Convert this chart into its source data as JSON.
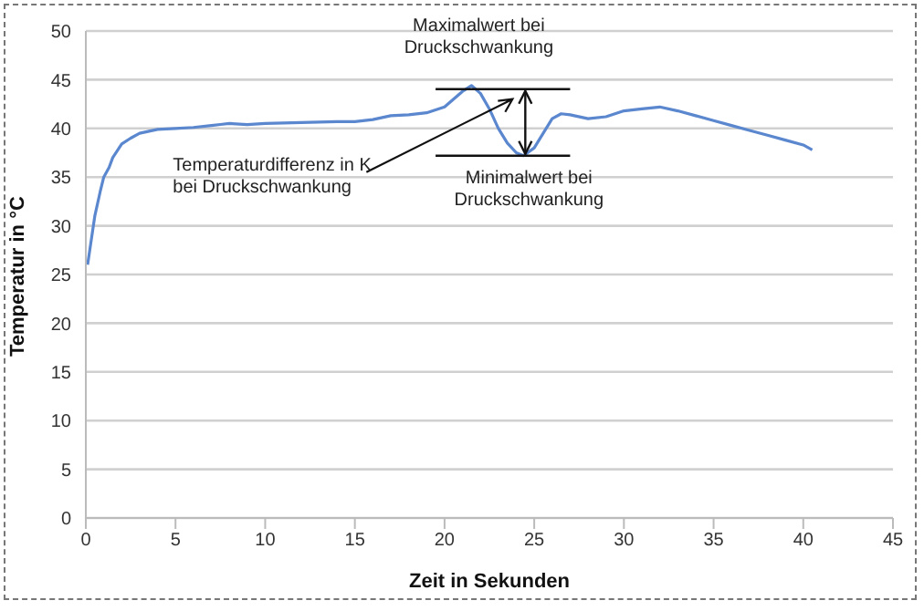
{
  "chart_data": {
    "type": "line",
    "xlabel": "Zeit in Sekunden",
    "ylabel": "Temperatur in °C",
    "x": [
      0.1,
      0.3,
      0.5,
      0.8,
      1,
      1.3,
      1.5,
      2,
      2.5,
      3,
      4,
      5,
      6,
      7,
      7.5,
      8,
      9,
      10,
      12,
      14,
      15,
      16,
      17,
      18,
      19,
      20,
      20.5,
      21,
      21.5,
      22,
      22.5,
      23,
      23.5,
      24,
      24.4,
      25,
      25.5,
      26,
      26.5,
      27,
      28,
      29,
      30,
      31,
      32,
      33,
      34,
      35,
      36,
      37,
      38,
      39,
      40,
      40.5
    ],
    "series": [
      {
        "color": "#5b87cf",
        "values": [
          26,
          28.5,
          31,
          33.5,
          35,
          36,
          37,
          38.4,
          39,
          39.5,
          39.9,
          40,
          40.1,
          40.3,
          40.4,
          40.5,
          40.4,
          40.5,
          40.6,
          40.7,
          40.7,
          40.9,
          41.3,
          41.4,
          41.6,
          42.2,
          43,
          43.8,
          44.4,
          43.6,
          42,
          40,
          38.5,
          37.5,
          37.2,
          38,
          39.5,
          41,
          41.5,
          41.4,
          41,
          41.2,
          41.8,
          42,
          42.2,
          41.8,
          41.3,
          40.8,
          40.3,
          39.8,
          39.3,
          38.8,
          38.3,
          37.8
        ]
      }
    ],
    "xlim": [
      0,
      45
    ],
    "xticks": [
      0,
      5,
      10,
      15,
      20,
      25,
      30,
      35,
      40,
      45
    ],
    "ylim": [
      0,
      50
    ],
    "yticks": [
      0,
      5,
      10,
      15,
      20,
      25,
      30,
      35,
      40,
      45,
      50
    ],
    "grid": "y",
    "legend": false,
    "marker": "none",
    "line_style": "solid",
    "annotations": [
      {
        "text": "Maximalwert bei\nDruckschwankung",
        "x": 21.5,
        "y": 44.4
      },
      {
        "text": "Minimalwert bei\nDruckschwankung",
        "x": 24.4,
        "y": 37.2
      },
      "Temperaturdifferenz in K\nbei Druckschwankung"
    ]
  }
}
